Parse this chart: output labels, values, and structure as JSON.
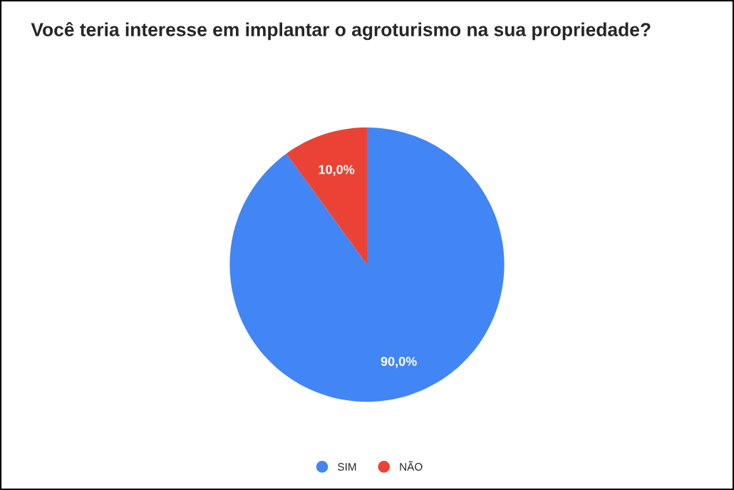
{
  "chart_data": {
    "type": "pie",
    "title": " Você teria interesse em implantar o agroturismo na sua propriedade?",
    "categories": [
      "SIM",
      "NÃO"
    ],
    "values": [
      90,
      10
    ],
    "colors": [
      "#4285f4",
      "#ea4335"
    ],
    "value_labels": [
      "90,0%",
      "10,0%"
    ],
    "legend": "bottom"
  }
}
